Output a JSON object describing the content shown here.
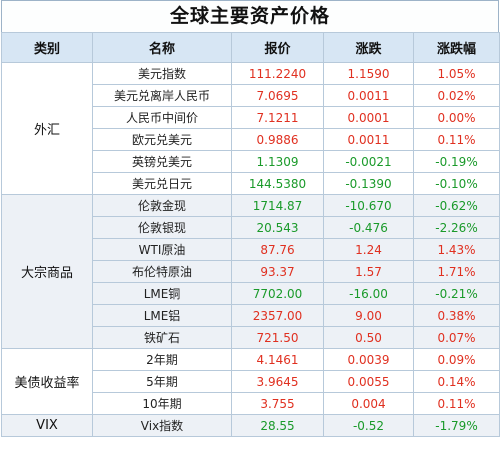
{
  "title": "全球主要资产价格",
  "headers": [
    "类别",
    "名称",
    "报价",
    "涨跌",
    "涨跌幅"
  ],
  "groups": [
    {
      "category": "外汇",
      "rows": [
        {
          "name": "美元指数",
          "price": "111.2240",
          "change": "1.1590",
          "pct": "1.05%",
          "dir": "up"
        },
        {
          "name": "美元兑离岸人民币",
          "price": "7.0695",
          "change": "0.0011",
          "pct": "0.02%",
          "dir": "up"
        },
        {
          "name": "人民币中间价",
          "price": "7.1211",
          "change": "0.0001",
          "pct": "0.00%",
          "dir": "up"
        },
        {
          "name": "欧元兑美元",
          "price": "0.9886",
          "change": "0.0011",
          "pct": "0.11%",
          "dir": "up"
        },
        {
          "name": "英镑兑美元",
          "price": "1.1309",
          "change": "-0.0021",
          "pct": "-0.19%",
          "dir": "down"
        },
        {
          "name": "美元兑日元",
          "price": "144.5380",
          "change": "-0.1390",
          "pct": "-0.10%",
          "dir": "down"
        }
      ]
    },
    {
      "category": "大宗商品",
      "rows": [
        {
          "name": "伦敦金现",
          "price": "1714.87",
          "change": "-10.670",
          "pct": "-0.62%",
          "dir": "down"
        },
        {
          "name": "伦敦银现",
          "price": "20.543",
          "change": "-0.476",
          "pct": "-2.26%",
          "dir": "down"
        },
        {
          "name": "WTI原油",
          "price": "87.76",
          "change": "1.24",
          "pct": "1.43%",
          "dir": "up"
        },
        {
          "name": "布伦特原油",
          "price": "93.37",
          "change": "1.57",
          "pct": "1.71%",
          "dir": "up"
        },
        {
          "name": "LME铜",
          "price": "7702.00",
          "change": "-16.00",
          "pct": "-0.21%",
          "dir": "down"
        },
        {
          "name": "LME铝",
          "price": "2357.00",
          "change": "9.00",
          "pct": "0.38%",
          "dir": "up"
        },
        {
          "name": "铁矿石",
          "price": "721.50",
          "change": "0.50",
          "pct": "0.07%",
          "dir": "up"
        }
      ]
    },
    {
      "category": "美债收益率",
      "rows": [
        {
          "name": "2年期",
          "price": "4.1461",
          "change": "0.0039",
          "pct": "0.09%",
          "dir": "up"
        },
        {
          "name": "5年期",
          "price": "3.9645",
          "change": "0.0055",
          "pct": "0.14%",
          "dir": "up"
        },
        {
          "name": "10年期",
          "price": "3.755",
          "change": "0.004",
          "pct": "0.11%",
          "dir": "up"
        }
      ]
    },
    {
      "category": "VIX",
      "rows": [
        {
          "name": "Vix指数",
          "price": "28.55",
          "change": "-0.52",
          "pct": "-1.79%",
          "dir": "down"
        }
      ]
    }
  ],
  "colors": {
    "up": "#e03020",
    "down": "#1a9a2a",
    "header_bg": "#d7e6f4",
    "alt_bg": "#edf1f6"
  }
}
